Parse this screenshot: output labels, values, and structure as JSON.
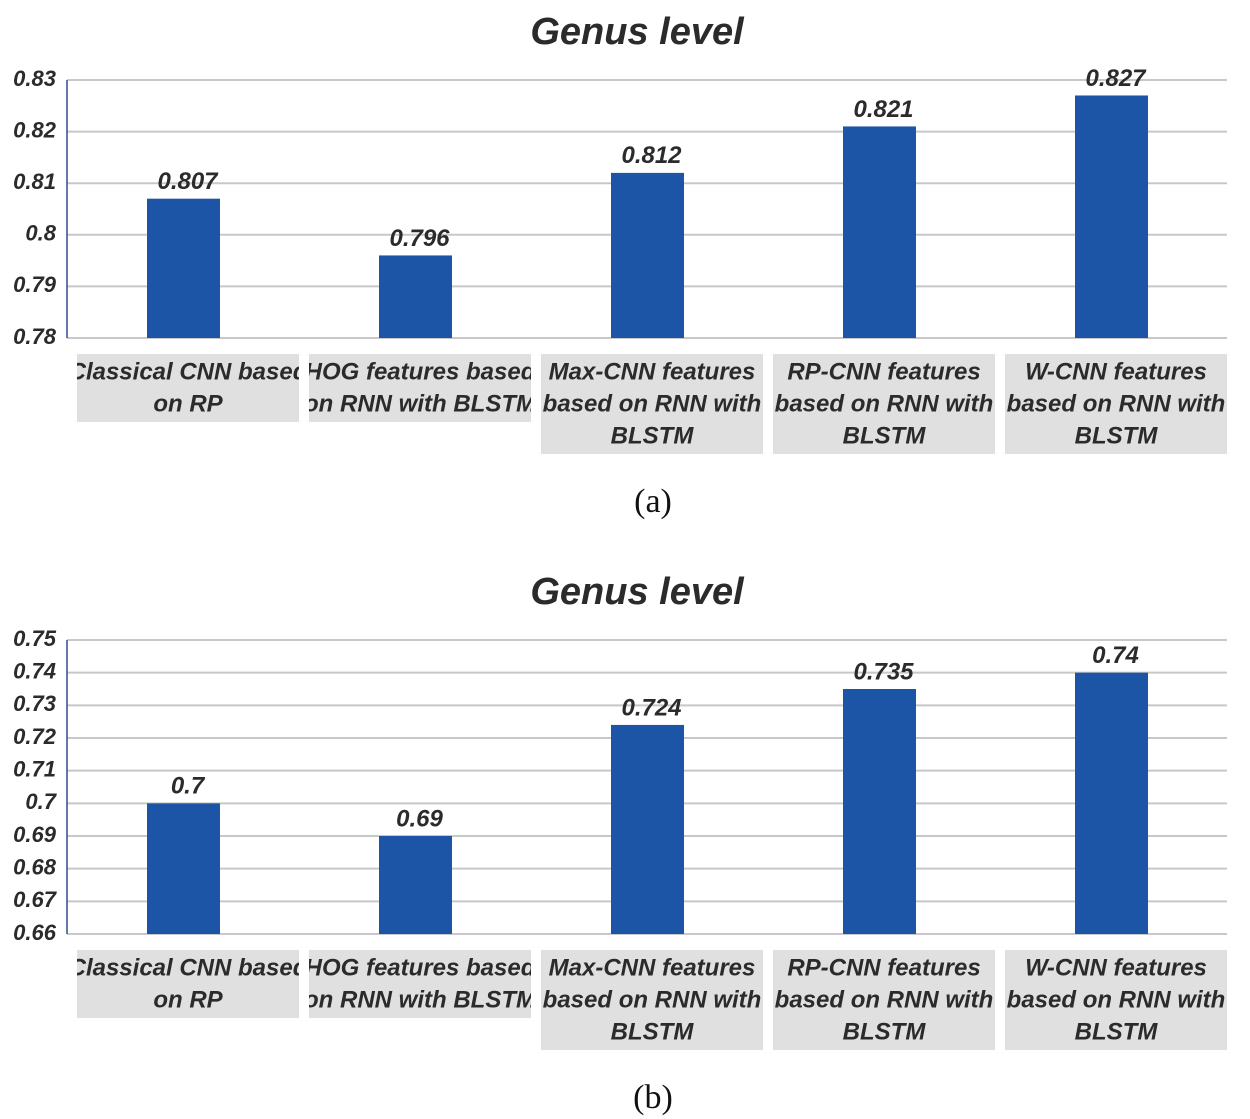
{
  "chart_data": [
    {
      "type": "bar",
      "title": "Genus level",
      "categories": [
        [
          "Classical CNN based",
          "on RP"
        ],
        [
          "HOG features based",
          "on RNN with BLSTM"
        ],
        [
          "Max-CNN features",
          "based on RNN with",
          "BLSTM"
        ],
        [
          "RP-CNN features",
          "based on RNN with",
          "BLSTM"
        ],
        [
          "W-CNN features",
          "based on RNN with",
          "BLSTM"
        ]
      ],
      "values": [
        0.807,
        0.796,
        0.812,
        0.821,
        0.827
      ],
      "value_labels": [
        "0.807",
        "0.796",
        "0.812",
        "0.821",
        "0.827"
      ],
      "ylim": [
        0.78,
        0.83
      ],
      "yticks": [
        0.78,
        0.79,
        0.8,
        0.81,
        0.82,
        0.83
      ],
      "ytick_labels": [
        "0.78",
        "0.79",
        "0.8",
        "0.81",
        "0.82",
        "0.83"
      ],
      "caption": "(a)",
      "grid": true,
      "bar_color": "#1c54a6"
    },
    {
      "type": "bar",
      "title": "Genus level",
      "categories": [
        [
          "Classical CNN based",
          "on RP"
        ],
        [
          "HOG features based",
          "on RNN with BLSTM"
        ],
        [
          "Max-CNN features",
          "based on RNN with",
          "BLSTM"
        ],
        [
          "RP-CNN features",
          "based on RNN with",
          "BLSTM"
        ],
        [
          "W-CNN features",
          "based on RNN with",
          "BLSTM"
        ]
      ],
      "values": [
        0.7,
        0.69,
        0.724,
        0.735,
        0.74
      ],
      "value_labels": [
        "0.7",
        "0.69",
        "0.724",
        "0.735",
        "0.74"
      ],
      "ylim": [
        0.66,
        0.75
      ],
      "yticks": [
        0.66,
        0.67,
        0.68,
        0.69,
        0.7,
        0.71,
        0.72,
        0.73,
        0.74,
        0.75
      ],
      "ytick_labels": [
        "0.66",
        "0.67",
        "0.68",
        "0.69",
        "0.7",
        "0.71",
        "0.72",
        "0.73",
        "0.74",
        "0.75"
      ],
      "caption": "(b)",
      "grid": true,
      "bar_color": "#1c54a6"
    }
  ]
}
